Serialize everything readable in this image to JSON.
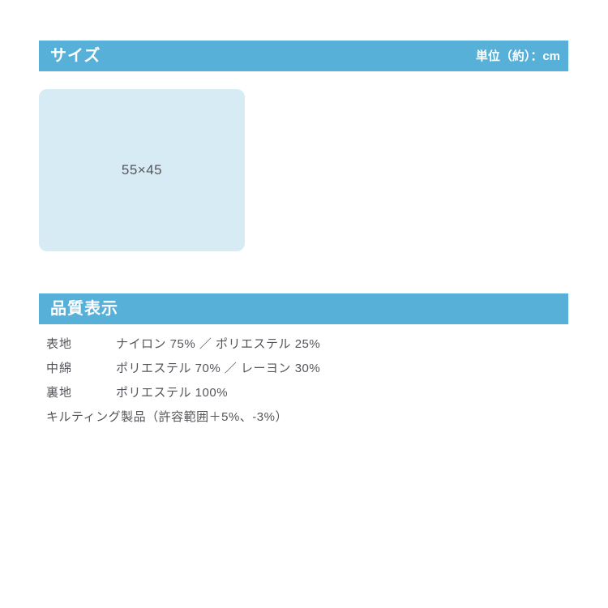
{
  "size_section": {
    "title": "サイズ",
    "unit_label": "単位（約）：cm",
    "dimension_label": "55×45"
  },
  "quality_section": {
    "title": "品質表示",
    "rows": [
      {
        "label": "表地",
        "value": "ナイロン 75% ／ ポリエステル 25%"
      },
      {
        "label": "中綿",
        "value": "ポリエステル 70% ／ レーヨン 30%"
      },
      {
        "label": "裏地",
        "value": "ポリエステル 100%"
      }
    ],
    "note": "キルティング製品（許容範囲＋5%、-3%）"
  },
  "colors": {
    "section_bar": "#56b0d8",
    "swatch_background": "#d7ebf4",
    "body_text": "#54555a",
    "bar_text": "#ffffff",
    "page_background": "#ffffff"
  }
}
